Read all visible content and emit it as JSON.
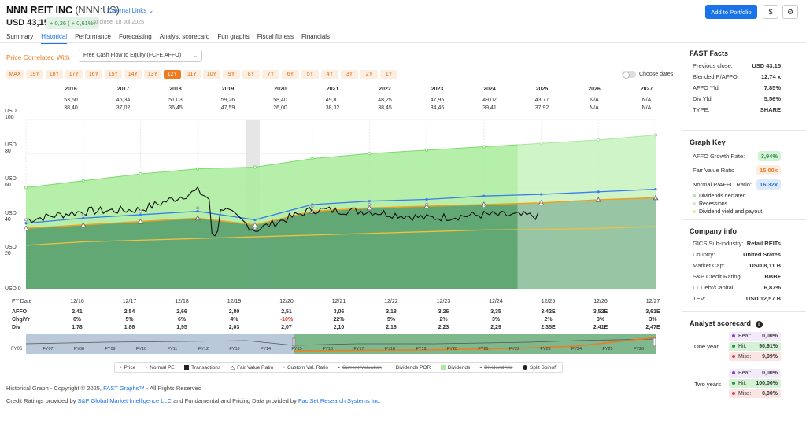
{
  "header": {
    "company": "NNN REIT INC",
    "ticker": "(NNN:US)",
    "external_links": "External Links",
    "price": "USD 43,15",
    "change": "+ 0,26 ( + 0,61%)",
    "close_date": "At close: 18 Jul 2025",
    "add_to_portfolio": "Add to Portfolio",
    "currency_btn": "$",
    "settings_btn": "⚙"
  },
  "tabs": [
    "Summary",
    "Historical",
    "Performance",
    "Forecasting",
    "Analyst scorecard",
    "Fun graphs",
    "Fiscal fitness",
    "Financials"
  ],
  "active_tab": "Historical",
  "controls": {
    "price_correlated_label": "Price Correlated With",
    "price_correlated_value": "Free Cash Flow to Equity (FCFE,AFFO)",
    "timeframes": [
      "MAX",
      "19Y",
      "18Y",
      "17Y",
      "16Y",
      "15Y",
      "14Y",
      "13Y",
      "12Y",
      "11Y",
      "10Y",
      "9Y",
      "8Y",
      "7Y",
      "6Y",
      "5Y",
      "4Y",
      "3Y",
      "2Y",
      "1Y"
    ],
    "selected_timeframe": "12Y",
    "choose_dates": "Choose dates"
  },
  "top_table": {
    "years": [
      "2016",
      "2017",
      "2018",
      "2019",
      "2020",
      "2021",
      "2022",
      "2023",
      "2024",
      "2025",
      "2026",
      "2027"
    ],
    "highs": [
      "53,60",
      "46,34",
      "51,03",
      "59,26",
      "58,40",
      "49,81",
      "48,25",
      "47,95",
      "49,02",
      "43,77",
      "N/A",
      "N/A"
    ],
    "lows": [
      "38,40",
      "37,02",
      "36,45",
      "47,59",
      "26,00",
      "38,32",
      "38,45",
      "34,46",
      "39,41",
      "37,92",
      "N/A",
      "N/A"
    ]
  },
  "y_axis": [
    {
      "label": "USD\n100",
      "value": 100
    },
    {
      "label": "USD\n80",
      "value": 80
    },
    {
      "label": "USD\n60",
      "value": 60
    },
    {
      "label": "USD\n40",
      "value": 40
    },
    {
      "label": "USD\n20",
      "value": 20
    },
    {
      "label": "USD 0",
      "value": 0
    }
  ],
  "bottom_table": {
    "labels": {
      "fy": "FY Date",
      "affo": "AFFO",
      "chg": "Chg/Yr",
      "div": "Div"
    },
    "fy": [
      "12/16",
      "12/17",
      "12/18",
      "12/19",
      "12/20",
      "12/21",
      "12/22",
      "12/23",
      "12/24",
      "12/25",
      "12/26",
      "12/27"
    ],
    "affo": [
      "2,41",
      "2,54",
      "2,66",
      "2,80",
      "2,51",
      "3,06",
      "3,18",
      "3,26",
      "3,35",
      "3,42E",
      "3,52E",
      "3,61E"
    ],
    "chg": [
      "6%",
      "5%",
      "6%",
      "4%",
      "-10%",
      "22%",
      "5%",
      "2%",
      "3%",
      "2%",
      "3%",
      "3%"
    ],
    "div": [
      "1,78",
      "1,86",
      "1,95",
      "2,03",
      "2,07",
      "2,10",
      "2,16",
      "2,23",
      "2,29",
      "2,35E",
      "2,41E",
      "2,47E"
    ]
  },
  "navigator": {
    "start_label": "FY06",
    "fy_labels": [
      "FY07",
      "FY08",
      "FY09",
      "FY10",
      "FY11",
      "FY12",
      "FY13",
      "FY14",
      "FY15",
      "FY16",
      "FY17",
      "FY18",
      "FY19",
      "FY20",
      "FY21",
      "FY22",
      "FY23",
      "FY24",
      "FY25",
      "FY26"
    ]
  },
  "legend": [
    "Price",
    "Normal PE",
    "Transactions",
    "Fair Value Ratio",
    "Custom Val. Ratio",
    "Current Valuation",
    "Dividends POR",
    "Dividends",
    "Dividend Yld",
    "Split Spinoff"
  ],
  "footer": {
    "copyright_pre": "Historical Graph - Copyright © 2025, ",
    "copyright_link": "FAST Graphs™",
    "copyright_post": " - All Rights Reserved",
    "credits_pre": "Credit Ratings provided by ",
    "credits_link1": "S&P Global Market Intelligence LLC",
    "credits_mid": " and Fundamental and Pricing Data provided by ",
    "credits_link2": "FactSet Research Systems Inc."
  },
  "fast_facts": {
    "title": "FAST Facts",
    "rows": [
      {
        "label": "Previous close:",
        "value": "USD 43,15"
      },
      {
        "label": "Blended P/AFFO:",
        "value": "12,74 x"
      },
      {
        "label": "AFFO Yld:",
        "value": "7,85%"
      },
      {
        "label": "Div Yld:",
        "value": "5,56%"
      },
      {
        "label": "TYPE:",
        "value": "SHARE"
      }
    ]
  },
  "graph_key": {
    "title": "Graph Key",
    "growth_label": "AFFO Growth Rate:",
    "growth_value": "3,94%",
    "fair_label": "Fair Value Ratio",
    "fair_value": "15,00x",
    "normal_label": "Normal P/AFFO Ratio:",
    "normal_value": "16,32x",
    "items": [
      "Dividends declared",
      "Recessions",
      "Dividend yield and payout"
    ]
  },
  "company_info": {
    "title": "Company info",
    "rows": [
      {
        "label": "GICS Sub-industry:",
        "value": "Retail REITs"
      },
      {
        "label": "Country:",
        "value": "United States"
      },
      {
        "label": "Market Cap:",
        "value": "USD 8,11 B"
      },
      {
        "label": "S&P Credit Rating:",
        "value": "BBB+"
      },
      {
        "label": "LT Debt/Capital:",
        "value": "6,87%"
      },
      {
        "label": "TEV:",
        "value": "USD 12,57 B"
      }
    ]
  },
  "analyst_scorecard": {
    "title": "Analyst scorecard",
    "info_icon": "i",
    "groups": [
      {
        "period": "One year",
        "beat": "0,00%",
        "hit": "90,91%",
        "miss": "9,09%"
      },
      {
        "period": "Two years",
        "beat": "0,00%",
        "hit": "100,00%",
        "miss": "0,00%"
      }
    ],
    "beat_label": "Beat:",
    "hit_label": "Hit:",
    "miss_label": "Miss:"
  },
  "colors": {
    "accent_blue": "#1a73e8",
    "orange": "#f07a20",
    "dividend_green": "#a8ec9a",
    "price_area": "#5ea372",
    "normal_pe_line": "#3d7cf0",
    "fair_value_line": "#f0a020",
    "div_por_line": "#f0c040"
  },
  "chart_data": {
    "type": "area",
    "xlabel": "",
    "ylabel": "USD",
    "ylim": [
      0,
      100
    ],
    "categories": [
      "2016",
      "2017",
      "2018",
      "2019",
      "2020",
      "2021",
      "2022",
      "2023",
      "2024",
      "2025",
      "2026",
      "2027"
    ],
    "series": [
      {
        "name": "Price",
        "values": [
          41,
          46,
          47,
          58,
          35,
          47,
          46,
          42,
          44,
          43.2,
          null,
          null
        ]
      },
      {
        "name": "Normal PE",
        "values": [
          39,
          42,
          44,
          46,
          41,
          50,
          52,
          53,
          55,
          56,
          57.5,
          59
        ]
      },
      {
        "name": "Fair Value Ratio",
        "values": [
          36,
          38,
          40,
          42,
          38,
          46,
          48,
          49,
          50,
          51,
          52.8,
          54
        ]
      },
      {
        "name": "Dividends",
        "values": [
          60,
          64,
          68,
          71,
          72,
          77,
          80,
          82,
          84,
          86,
          88,
          91
        ]
      },
      {
        "name": "Dividends POR",
        "values": [
          26,
          28,
          29,
          30,
          31,
          32,
          33,
          34,
          35,
          35.3,
          36,
          37
        ]
      }
    ],
    "dividends_declared": [
      41,
      44,
      46,
      48,
      36,
      49,
      50,
      50,
      49,
      51.5,
      52.6,
      53.7
    ]
  }
}
